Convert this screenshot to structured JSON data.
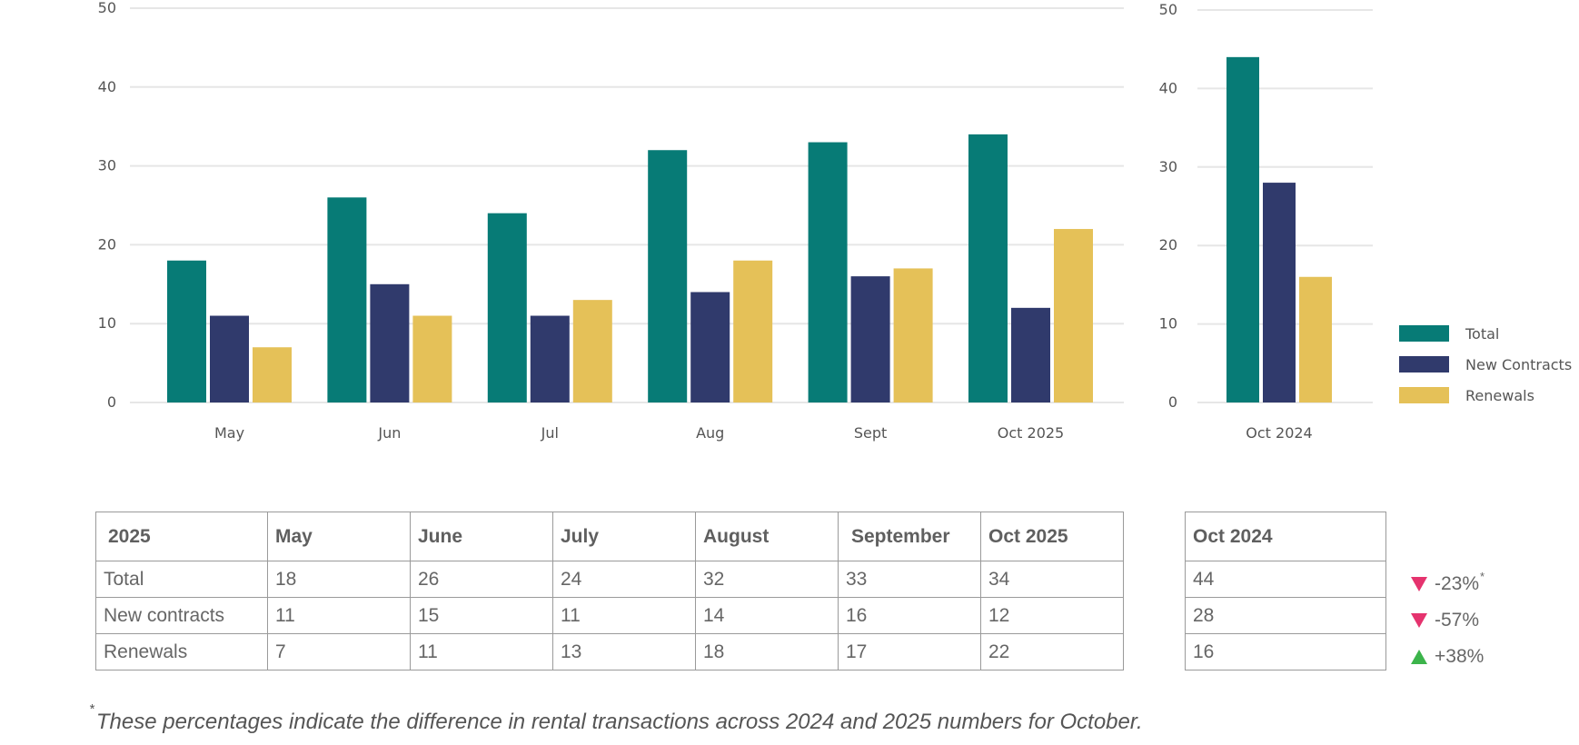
{
  "colors": {
    "total": "#077b76",
    "new_contracts": "#303a6c",
    "renewals": "#e5c158",
    "grid": "#e6e6e6",
    "down": "#e5336e",
    "up": "#3cb44b"
  },
  "chart_data": [
    {
      "type": "bar",
      "title": "",
      "categories": [
        "May",
        "Jun",
        "Jul",
        "Aug",
        "Sept",
        "Oct 2025"
      ],
      "series": [
        {
          "name": "Total",
          "values": [
            18,
            26,
            24,
            32,
            33,
            34
          ]
        },
        {
          "name": "New Contracts",
          "values": [
            11,
            15,
            11,
            14,
            16,
            12
          ]
        },
        {
          "name": "Renewals",
          "values": [
            7,
            11,
            13,
            18,
            17,
            22
          ]
        }
      ],
      "yticks": [
        0,
        10,
        20,
        30,
        40,
        50
      ],
      "ylim": [
        0,
        50
      ],
      "xlabel": "",
      "ylabel": "",
      "grid": true
    },
    {
      "type": "bar",
      "title": "",
      "categories": [
        "Oct 2024"
      ],
      "series": [
        {
          "name": "Total",
          "values": [
            44
          ]
        },
        {
          "name": "New Contracts",
          "values": [
            28
          ]
        },
        {
          "name": "Renewals",
          "values": [
            16
          ]
        }
      ],
      "yticks": [
        0,
        10,
        20,
        30,
        40,
        50
      ],
      "ylim": [
        0,
        50
      ],
      "xlabel": "",
      "ylabel": "",
      "grid": true,
      "legend": {
        "position": "right",
        "entries": [
          "Total",
          "New Contracts",
          "Renewals"
        ]
      }
    }
  ],
  "table_main": {
    "headers": [
      "2025",
      "May",
      "June",
      "July",
      "August",
      "September",
      "Oct 2025"
    ],
    "rows": [
      {
        "label": "Total",
        "values": [
          "18",
          "26",
          "24",
          "32",
          "33",
          "34"
        ]
      },
      {
        "label": "New contracts",
        "values": [
          "11",
          "15",
          "11",
          "14",
          "16",
          "12"
        ]
      },
      {
        "label": "Renewals",
        "values": [
          "7",
          "11",
          "13",
          "18",
          "17",
          "22"
        ]
      }
    ]
  },
  "table_side": {
    "header": "Oct 2024",
    "values": [
      "44",
      "28",
      "16"
    ]
  },
  "changes": [
    {
      "direction": "down",
      "text": "-23%",
      "mark": "*"
    },
    {
      "direction": "down",
      "text": "-57%",
      "mark": ""
    },
    {
      "direction": "up",
      "text": "+38%",
      "mark": ""
    }
  ],
  "footnote": {
    "mark": "*",
    "text": "These percentages indicate the difference in rental transactions across 2024 and 2025 numbers for October."
  }
}
